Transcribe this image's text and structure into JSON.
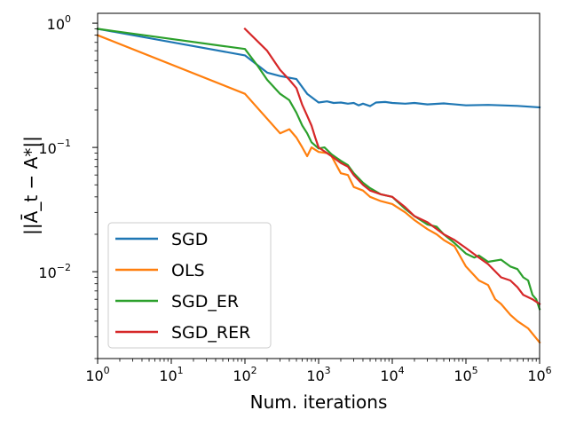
{
  "chart_data": {
    "type": "line",
    "xscale": "log",
    "yscale": "log",
    "xlim": [
      1,
      1000000
    ],
    "ylim": [
      0.002,
      1.2
    ],
    "xlabel": "Num. iterations",
    "ylabel": "||Ā_t − A*||",
    "x_ticks": [
      {
        "value": 1,
        "base": "10",
        "exp": "0"
      },
      {
        "value": 10,
        "base": "10",
        "exp": "1"
      },
      {
        "value": 100,
        "base": "10",
        "exp": "2"
      },
      {
        "value": 1000,
        "base": "10",
        "exp": "3"
      },
      {
        "value": 10000,
        "base": "10",
        "exp": "4"
      },
      {
        "value": 100000,
        "base": "10",
        "exp": "5"
      },
      {
        "value": 1000000,
        "base": "10",
        "exp": "6"
      }
    ],
    "y_ticks": [
      {
        "value": 0.01,
        "base": "10",
        "exp": "−2"
      },
      {
        "value": 0.1,
        "base": "10",
        "exp": "−1"
      },
      {
        "value": 1,
        "base": "10",
        "exp": "0"
      }
    ],
    "legend_position": "lower-left",
    "series": [
      {
        "name": "SGD",
        "color": "#1f77b4",
        "points": [
          [
            1,
            0.9
          ],
          [
            100,
            0.55
          ],
          [
            200,
            0.4
          ],
          [
            300,
            0.375
          ],
          [
            500,
            0.355
          ],
          [
            700,
            0.27
          ],
          [
            1000,
            0.23
          ],
          [
            1300,
            0.235
          ],
          [
            1600,
            0.228
          ],
          [
            2000,
            0.23
          ],
          [
            2500,
            0.225
          ],
          [
            3000,
            0.228
          ],
          [
            3500,
            0.218
          ],
          [
            4000,
            0.225
          ],
          [
            5000,
            0.215
          ],
          [
            6000,
            0.23
          ],
          [
            8000,
            0.232
          ],
          [
            10000,
            0.228
          ],
          [
            15000,
            0.225
          ],
          [
            20000,
            0.228
          ],
          [
            30000,
            0.222
          ],
          [
            50000,
            0.226
          ],
          [
            100000,
            0.218
          ],
          [
            200000,
            0.22
          ],
          [
            500000,
            0.216
          ],
          [
            1000000,
            0.21
          ]
        ]
      },
      {
        "name": "OLS",
        "color": "#ff7f0e",
        "points": [
          [
            1,
            0.8
          ],
          [
            100,
            0.27
          ],
          [
            300,
            0.13
          ],
          [
            400,
            0.14
          ],
          [
            500,
            0.12
          ],
          [
            600,
            0.1
          ],
          [
            700,
            0.085
          ],
          [
            800,
            0.1
          ],
          [
            1000,
            0.092
          ],
          [
            1300,
            0.09
          ],
          [
            1500,
            0.085
          ],
          [
            2000,
            0.062
          ],
          [
            2500,
            0.06
          ],
          [
            3000,
            0.048
          ],
          [
            4000,
            0.045
          ],
          [
            5000,
            0.04
          ],
          [
            7000,
            0.037
          ],
          [
            10000,
            0.035
          ],
          [
            15000,
            0.03
          ],
          [
            20000,
            0.026
          ],
          [
            30000,
            0.022
          ],
          [
            40000,
            0.02
          ],
          [
            50000,
            0.018
          ],
          [
            70000,
            0.016
          ],
          [
            100000,
            0.011
          ],
          [
            150000,
            0.0085
          ],
          [
            200000,
            0.0078
          ],
          [
            250000,
            0.006
          ],
          [
            300000,
            0.0055
          ],
          [
            400000,
            0.0045
          ],
          [
            500000,
            0.004
          ],
          [
            700000,
            0.0035
          ],
          [
            1000000,
            0.0027
          ]
        ]
      },
      {
        "name": "SGD_ER",
        "color": "#2ca02c",
        "points": [
          [
            1,
            0.9
          ],
          [
            100,
            0.62
          ],
          [
            150,
            0.45
          ],
          [
            200,
            0.35
          ],
          [
            300,
            0.27
          ],
          [
            400,
            0.24
          ],
          [
            500,
            0.19
          ],
          [
            600,
            0.15
          ],
          [
            700,
            0.13
          ],
          [
            800,
            0.11
          ],
          [
            1000,
            0.098
          ],
          [
            1200,
            0.1
          ],
          [
            1500,
            0.088
          ],
          [
            2000,
            0.078
          ],
          [
            2500,
            0.072
          ],
          [
            3000,
            0.062
          ],
          [
            4000,
            0.052
          ],
          [
            5000,
            0.047
          ],
          [
            7000,
            0.042
          ],
          [
            10000,
            0.04
          ],
          [
            15000,
            0.032
          ],
          [
            20000,
            0.028
          ],
          [
            30000,
            0.024
          ],
          [
            40000,
            0.023
          ],
          [
            50000,
            0.02
          ],
          [
            70000,
            0.017
          ],
          [
            100000,
            0.014
          ],
          [
            130000,
            0.013
          ],
          [
            150000,
            0.0135
          ],
          [
            200000,
            0.012
          ],
          [
            300000,
            0.0125
          ],
          [
            400000,
            0.011
          ],
          [
            500000,
            0.0105
          ],
          [
            600000,
            0.009
          ],
          [
            700000,
            0.0085
          ],
          [
            800000,
            0.0065
          ],
          [
            900000,
            0.006
          ],
          [
            1000000,
            0.005
          ]
        ]
      },
      {
        "name": "SGD_RER",
        "color": "#d62728",
        "points": [
          [
            100,
            0.9
          ],
          [
            200,
            0.6
          ],
          [
            300,
            0.42
          ],
          [
            400,
            0.35
          ],
          [
            500,
            0.3
          ],
          [
            600,
            0.22
          ],
          [
            700,
            0.18
          ],
          [
            800,
            0.15
          ],
          [
            900,
            0.12
          ],
          [
            1000,
            0.1
          ],
          [
            1300,
            0.09
          ],
          [
            1500,
            0.085
          ],
          [
            2000,
            0.075
          ],
          [
            2500,
            0.07
          ],
          [
            3000,
            0.06
          ],
          [
            4000,
            0.05
          ],
          [
            5000,
            0.045
          ],
          [
            7000,
            0.042
          ],
          [
            10000,
            0.04
          ],
          [
            15000,
            0.033
          ],
          [
            20000,
            0.028
          ],
          [
            30000,
            0.025
          ],
          [
            50000,
            0.02
          ],
          [
            70000,
            0.018
          ],
          [
            100000,
            0.0155
          ],
          [
            150000,
            0.013
          ],
          [
            200000,
            0.0115
          ],
          [
            300000,
            0.009
          ],
          [
            400000,
            0.0085
          ],
          [
            500000,
            0.0075
          ],
          [
            600000,
            0.0065
          ],
          [
            800000,
            0.006
          ],
          [
            1000000,
            0.0055
          ]
        ]
      }
    ]
  }
}
